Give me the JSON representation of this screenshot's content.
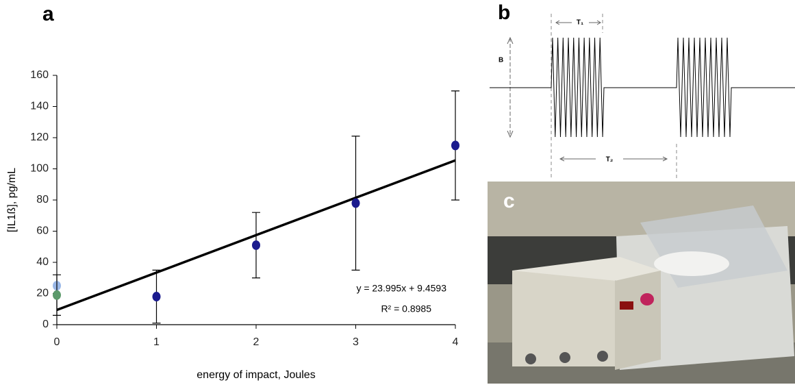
{
  "chart_data": {
    "type": "scatter",
    "x_label": "energy of impact, Joules",
    "y_label": "[IL1ß], pg/mL",
    "series": [
      {
        "color": "#9ab8e8",
        "x": [
          0
        ],
        "values": [
          25
        ]
      },
      {
        "color": "#5b9a6b",
        "x": [
          0
        ],
        "values": [
          19
        ],
        "errors": [
          13
        ]
      },
      {
        "color": "#1b1b8e",
        "x": [
          1,
          2,
          3,
          4
        ],
        "values": [
          18,
          51,
          78,
          115
        ],
        "errors": [
          17,
          21,
          43,
          35
        ]
      }
    ],
    "trendline": {
      "slope": 23.995,
      "intercept": 9.4593,
      "color": "#000000"
    },
    "equation": "y = 23.995x + 9.4593",
    "r_squared": "R² = 0.8985",
    "xlim": [
      0,
      4
    ],
    "xticks": [
      0,
      1,
      2,
      3,
      4
    ],
    "ylim": [
      0,
      160
    ],
    "yticks": [
      0,
      20,
      40,
      60,
      80,
      100,
      120,
      140,
      160
    ]
  },
  "panels": {
    "a": "a",
    "b": "b",
    "c": "c"
  },
  "diagram": {
    "amplitude": "B",
    "period1": "T₁",
    "period2": "T₂"
  }
}
